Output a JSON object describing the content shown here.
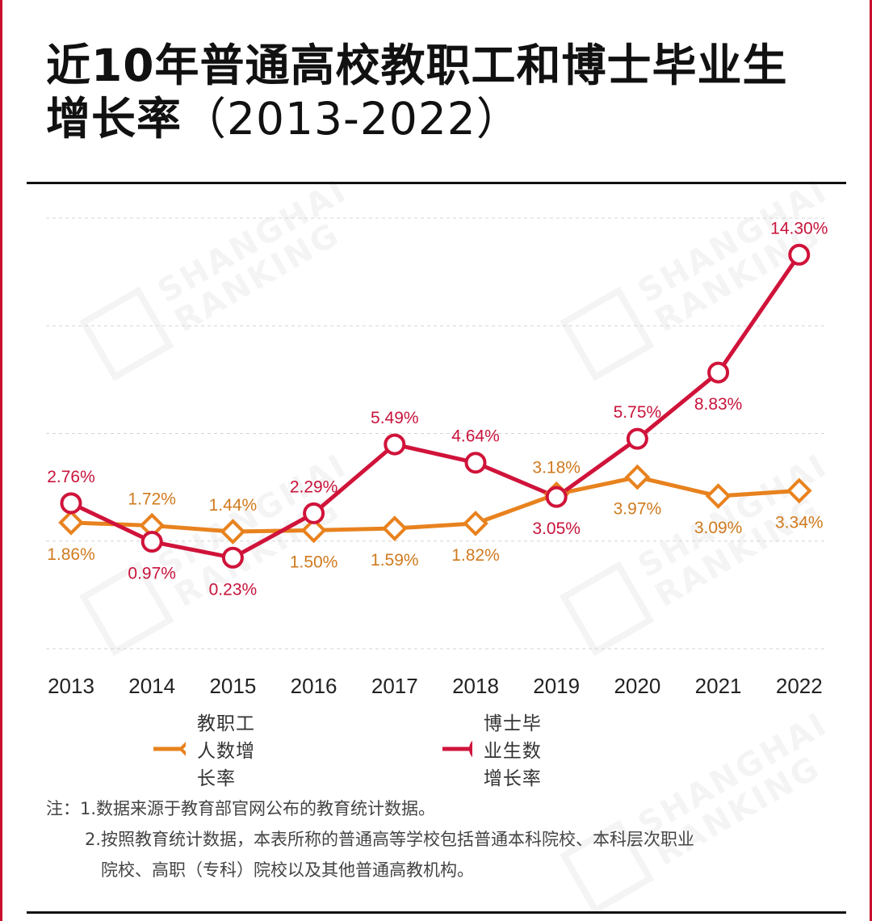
{
  "title": {
    "line1": "近10年普通高校教职工和博士毕业生",
    "line2_main": "增长率",
    "line2_sub": "（2013-2022）"
  },
  "watermark": {
    "line1": "SHANGHAI",
    "line2": "RANKING"
  },
  "legend": {
    "staff_label": "教职工人数增长率",
    "phd_label": "博士毕业生数增长率"
  },
  "notes": {
    "line1": "注：1.数据来源于教育部官网公布的教育统计数据。",
    "line2": "2.按照教育统计数据，本表所称的普通高等学校包括普通本科院校、本科层次职业",
    "line3": "院校、高职（专科）院校以及其他普通高教机构。"
  },
  "colors": {
    "staff": "#e8821e",
    "phd": "#d0133a",
    "staff_label": "#d07a1e",
    "phd_label": "#c8143c",
    "frame": "#c8102e"
  },
  "chart_data": {
    "type": "line",
    "categories": [
      "2013",
      "2014",
      "2015",
      "2016",
      "2017",
      "2018",
      "2019",
      "2020",
      "2021",
      "2022"
    ],
    "series": [
      {
        "name": "教职工人数增长率",
        "marker": "diamond",
        "values": [
          1.86,
          1.72,
          1.44,
          1.5,
          1.59,
          1.82,
          3.18,
          3.97,
          3.09,
          3.34
        ],
        "labels": [
          "1.86%",
          "1.72%",
          "1.44%",
          "1.50%",
          "1.59%",
          "1.82%",
          "3.18%",
          "3.97%",
          "3.09%",
          "3.34%"
        ]
      },
      {
        "name": "博士毕业生数增长率",
        "marker": "circle",
        "values": [
          2.76,
          0.97,
          0.23,
          2.29,
          5.49,
          4.64,
          3.05,
          5.75,
          8.83,
          14.3
        ],
        "labels": [
          "2.76%",
          "0.97%",
          "0.23%",
          "2.29%",
          "5.49%",
          "4.64%",
          "3.05%",
          "5.75%",
          "8.83%",
          "14.30%"
        ]
      }
    ],
    "ylim": [
      -4,
      16
    ],
    "grid": true
  }
}
